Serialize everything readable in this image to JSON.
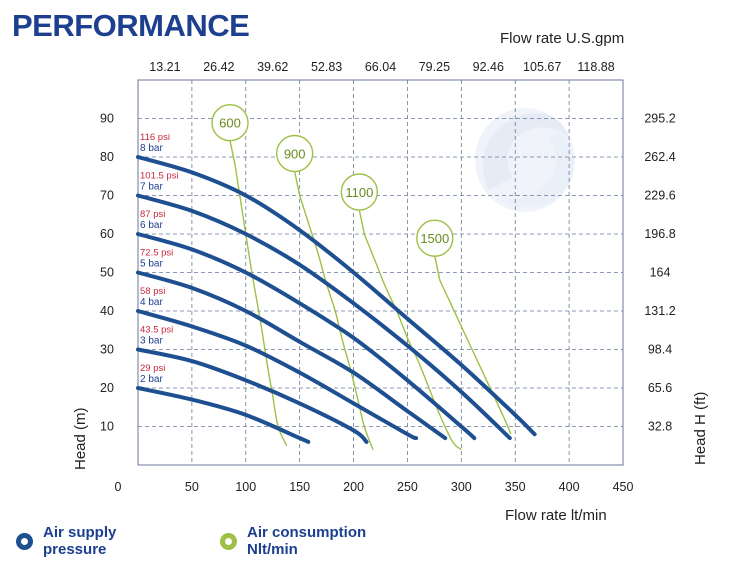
{
  "title": "PERFORMANCE",
  "chart_data": {
    "type": "line",
    "xlabel": "Flow rate  lt/min",
    "xlabel_top": "Flow rate U.S.gpm",
    "ylabel": "Head (m)",
    "ylabel_right": "Head H (ft)",
    "xlim": [
      0,
      450
    ],
    "ylim": [
      0,
      100
    ],
    "x_ticks": [
      "0",
      "50",
      "100",
      "150",
      "200",
      "250",
      "300",
      "350",
      "400",
      "450"
    ],
    "x_ticks_top": [
      "13.21",
      "26.42",
      "39.62",
      "52.83",
      "66.04",
      "79.25",
      "92.46",
      "105.67",
      "118.88"
    ],
    "y_ticks": [
      "10",
      "20",
      "30",
      "40",
      "50",
      "60",
      "70",
      "80",
      "90"
    ],
    "y_ticks_right": [
      "32.8",
      "65.6",
      "98.4",
      "131.2",
      "164",
      "196.8",
      "229.6",
      "262.4",
      "295.2"
    ],
    "grid": true,
    "colors": {
      "pressure": "#1d4f91",
      "air": "#9ec045",
      "title": "#1d3f8f",
      "psi_text": "#c8283a",
      "grid": "#6a7a9a"
    },
    "series": [
      {
        "psi": "116 psi",
        "bar": "8 bar",
        "x": [
          0,
          50,
          100,
          150,
          200,
          250,
          300,
          350,
          368
        ],
        "y": [
          80,
          76,
          70,
          61,
          50,
          38,
          26,
          13,
          8
        ]
      },
      {
        "psi": "101.5 psi",
        "bar": "7 bar",
        "x": [
          0,
          50,
          100,
          150,
          200,
          250,
          300,
          345
        ],
        "y": [
          70,
          66,
          60,
          52,
          42,
          31,
          19,
          7
        ]
      },
      {
        "psi": "87 psi",
        "bar": "6 bar",
        "x": [
          0,
          50,
          100,
          150,
          200,
          250,
          300,
          312
        ],
        "y": [
          60,
          56,
          50,
          42,
          33,
          22,
          10,
          7
        ]
      },
      {
        "psi": "72.5 psi",
        "bar": "5 bar",
        "x": [
          0,
          50,
          100,
          150,
          200,
          250,
          285
        ],
        "y": [
          50,
          46,
          40,
          32,
          24,
          14,
          7
        ]
      },
      {
        "psi": "58 psi",
        "bar": "4 bar",
        "x": [
          0,
          50,
          100,
          150,
          200,
          250,
          258
        ],
        "y": [
          40,
          36,
          31,
          24,
          16,
          8,
          7
        ]
      },
      {
        "psi": "43.5 psi",
        "bar": "3 bar",
        "x": [
          0,
          50,
          100,
          150,
          200,
          212
        ],
        "y": [
          30,
          27,
          22,
          16,
          9,
          6
        ]
      },
      {
        "psi": "29 psi",
        "bar": "2 bar",
        "x": [
          0,
          50,
          100,
          150,
          158
        ],
        "y": [
          20,
          17,
          13,
          7,
          6
        ]
      }
    ],
    "air_consumption": [
      {
        "label": "600",
        "x": [
          90,
          95,
          100,
          105,
          110,
          115,
          120,
          125,
          130,
          138
        ],
        "y": [
          78,
          69,
          60,
          51,
          43,
          35,
          26,
          18,
          10,
          5
        ]
      },
      {
        "label": "900",
        "x": [
          150,
          158,
          167,
          175,
          183,
          190,
          197,
          204,
          210,
          218
        ],
        "y": [
          70,
          63,
          55,
          47,
          40,
          32,
          25,
          17,
          10,
          4
        ]
      },
      {
        "label": "1100",
        "x": [
          210,
          220,
          230,
          240,
          250,
          260,
          270,
          280,
          292,
          300
        ],
        "y": [
          60,
          53,
          46,
          40,
          33,
          27,
          20,
          13,
          6,
          4
        ]
      },
      {
        "label": "1500",
        "x": [
          280,
          290,
          300,
          310,
          320,
          330,
          340,
          346
        ],
        "y": [
          48,
          42,
          36,
          30,
          24,
          18,
          12,
          8
        ]
      }
    ]
  },
  "legend": {
    "pressure_label": [
      "Air supply",
      "pressure"
    ],
    "air_label": [
      "Air consumption",
      "Nlt/min"
    ]
  }
}
